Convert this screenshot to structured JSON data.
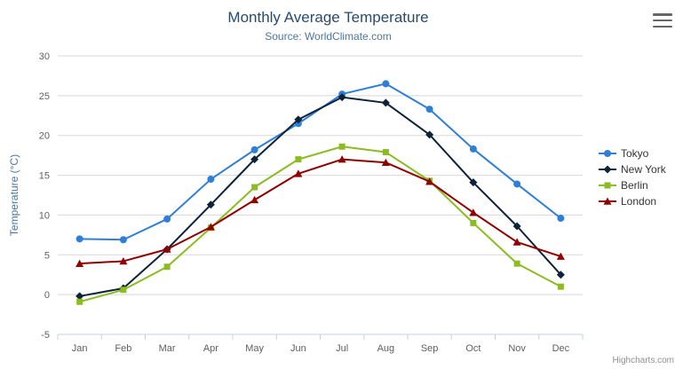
{
  "chart": {
    "title": "Monthly Average Temperature",
    "subtitle": "Source: WorldClimate.com",
    "credits": "Highcharts.com"
  },
  "chart_data": {
    "type": "line",
    "title": "Monthly Average Temperature",
    "subtitle": "Source: WorldClimate.com",
    "categories": [
      "Jan",
      "Feb",
      "Mar",
      "Apr",
      "May",
      "Jun",
      "Jul",
      "Aug",
      "Sep",
      "Oct",
      "Nov",
      "Dec"
    ],
    "xlabel": "",
    "ylabel": "Temperature (°C)",
    "ylim": [
      -5,
      30
    ],
    "ytick_interval": 5,
    "grid": "horizontal",
    "legend_position": "right",
    "series": [
      {
        "name": "Tokyo",
        "color": "#2f7ed8",
        "marker": "circle",
        "values": [
          7.0,
          6.9,
          9.5,
          14.5,
          18.2,
          21.5,
          25.2,
          26.5,
          23.3,
          18.3,
          13.9,
          9.6
        ]
      },
      {
        "name": "New York",
        "color": "#0d233a",
        "marker": "diamond",
        "values": [
          -0.2,
          0.8,
          5.7,
          11.3,
          17.0,
          22.0,
          24.8,
          24.1,
          20.1,
          14.1,
          8.6,
          2.5
        ]
      },
      {
        "name": "Berlin",
        "color": "#8bbc21",
        "marker": "square",
        "values": [
          -0.9,
          0.6,
          3.5,
          8.4,
          13.5,
          17.0,
          18.6,
          17.9,
          14.3,
          9.0,
          3.9,
          1.0
        ]
      },
      {
        "name": "London",
        "color": "#910000",
        "marker": "triangle",
        "values": [
          3.9,
          4.2,
          5.7,
          8.5,
          11.9,
          15.2,
          17.0,
          16.6,
          14.2,
          10.3,
          6.6,
          4.8
        ]
      }
    ],
    "axis_colors": {
      "label": "#606060",
      "gridline": "#d8d8d8",
      "axis_line": "#c0d0e0",
      "axis_title": "#4d759e"
    }
  }
}
